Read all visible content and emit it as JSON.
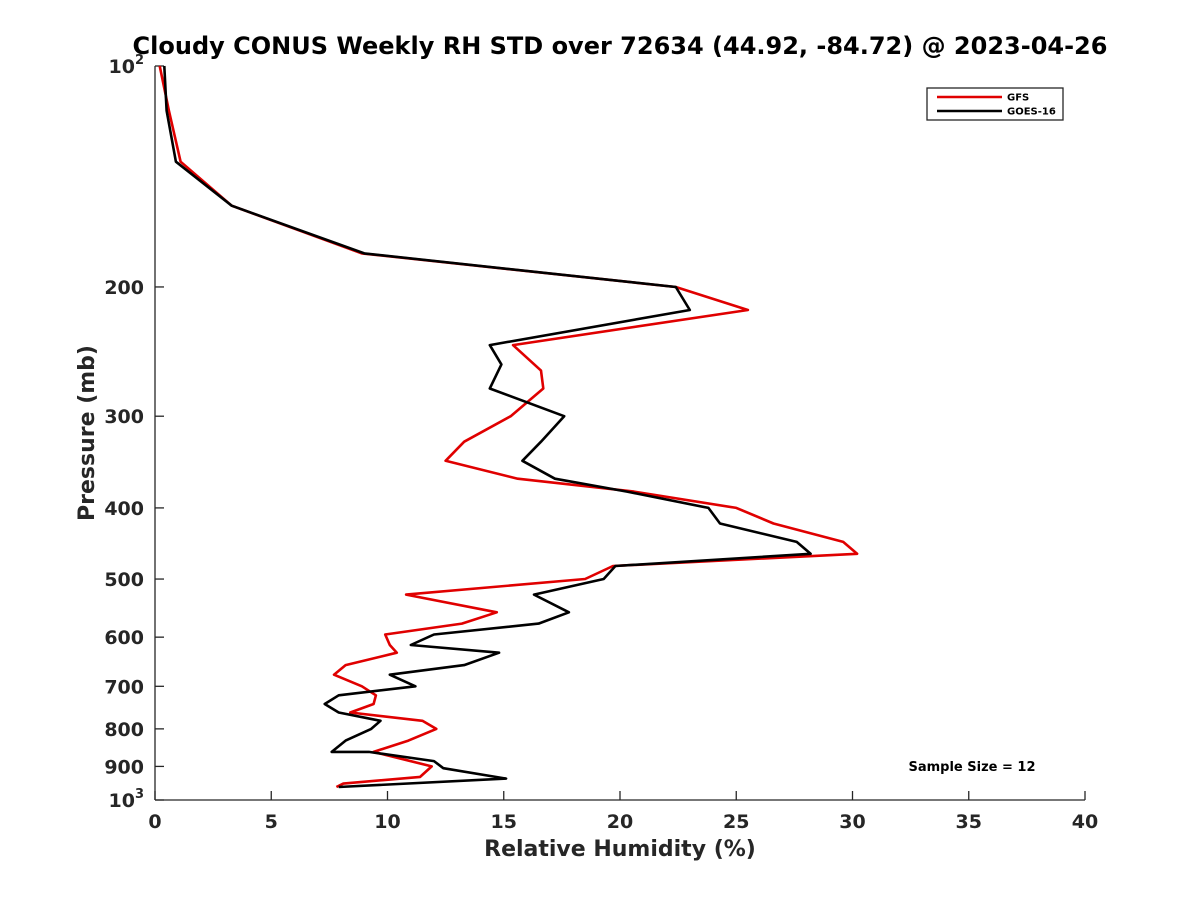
{
  "chart_data": {
    "type": "line",
    "title": "Cloudy CONUS Weekly RH STD over 72634 (44.92, -84.72) @ 2023-04-26",
    "xlabel": "Relative Humidity (%)",
    "ylabel": "Pressure (mb)",
    "xlim": [
      0,
      40
    ],
    "ylim": [
      100,
      1000
    ],
    "yscale": "log",
    "y_reversed": true,
    "x_ticks": [
      "0",
      "5",
      "10",
      "15",
      "20",
      "25",
      "30",
      "35",
      "40"
    ],
    "y_ticks": [
      {
        "value": 100,
        "base": "10",
        "exp": "2"
      },
      {
        "value": 200,
        "base": "200",
        "exp": ""
      },
      {
        "value": 300,
        "base": "300",
        "exp": ""
      },
      {
        "value": 400,
        "base": "400",
        "exp": ""
      },
      {
        "value": 500,
        "base": "500",
        "exp": ""
      },
      {
        "value": 600,
        "base": "600",
        "exp": ""
      },
      {
        "value": 700,
        "base": "700",
        "exp": ""
      },
      {
        "value": 800,
        "base": "800",
        "exp": ""
      },
      {
        "value": 900,
        "base": "900",
        "exp": ""
      },
      {
        "value": 1000,
        "base": "10",
        "exp": "3"
      }
    ],
    "grid": false,
    "legend_position": "top-right",
    "annotation": "Sample Size = 12",
    "series": [
      {
        "name": "GFS",
        "color": "#e00000",
        "points": [
          [
            0.2,
            100
          ],
          [
            0.6,
            115
          ],
          [
            1.1,
            135
          ],
          [
            3.3,
            155
          ],
          [
            8.9,
            180
          ],
          [
            22.4,
            200
          ],
          [
            25.5,
            215
          ],
          [
            15.4,
            240
          ],
          [
            16.6,
            260
          ],
          [
            16.7,
            275
          ],
          [
            15.3,
            300
          ],
          [
            13.3,
            325
          ],
          [
            12.5,
            345
          ],
          [
            15.6,
            365
          ],
          [
            20.6,
            380
          ],
          [
            25.0,
            400
          ],
          [
            26.6,
            420
          ],
          [
            29.6,
            445
          ],
          [
            30.2,
            462
          ],
          [
            19.7,
            480
          ],
          [
            18.5,
            500
          ],
          [
            10.8,
            525
          ],
          [
            14.7,
            555
          ],
          [
            13.2,
            575
          ],
          [
            9.9,
            595
          ],
          [
            10.1,
            615
          ],
          [
            10.4,
            630
          ],
          [
            8.2,
            655
          ],
          [
            7.7,
            675
          ],
          [
            8.9,
            700
          ],
          [
            9.5,
            720
          ],
          [
            9.4,
            740
          ],
          [
            8.4,
            760
          ],
          [
            11.5,
            780
          ],
          [
            12.1,
            800
          ],
          [
            10.9,
            830
          ],
          [
            9.4,
            860
          ],
          [
            11.9,
            900
          ],
          [
            11.4,
            930
          ],
          [
            8.1,
            950
          ],
          [
            7.8,
            960
          ]
        ]
      },
      {
        "name": "GOES-16",
        "color": "#000000",
        "points": [
          [
            0.4,
            100
          ],
          [
            0.5,
            115
          ],
          [
            0.9,
            135
          ],
          [
            3.3,
            155
          ],
          [
            9.0,
            180
          ],
          [
            22.4,
            200
          ],
          [
            23.0,
            215
          ],
          [
            14.4,
            240
          ],
          [
            14.9,
            255
          ],
          [
            14.4,
            275
          ],
          [
            17.6,
            300
          ],
          [
            16.6,
            325
          ],
          [
            15.8,
            345
          ],
          [
            17.2,
            365
          ],
          [
            20.3,
            380
          ],
          [
            23.8,
            400
          ],
          [
            24.3,
            420
          ],
          [
            27.6,
            445
          ],
          [
            28.2,
            462
          ],
          [
            19.8,
            480
          ],
          [
            19.3,
            500
          ],
          [
            16.3,
            525
          ],
          [
            17.8,
            555
          ],
          [
            16.5,
            575
          ],
          [
            12.0,
            595
          ],
          [
            11.0,
            615
          ],
          [
            14.8,
            630
          ],
          [
            13.3,
            655
          ],
          [
            10.1,
            675
          ],
          [
            11.2,
            700
          ],
          [
            7.9,
            720
          ],
          [
            7.3,
            740
          ],
          [
            7.9,
            760
          ],
          [
            9.7,
            780
          ],
          [
            9.3,
            800
          ],
          [
            8.2,
            830
          ],
          [
            7.6,
            860
          ],
          [
            9.2,
            860
          ],
          [
            12.0,
            885
          ],
          [
            12.4,
            905
          ],
          [
            15.1,
            935
          ],
          [
            7.9,
            960
          ]
        ]
      }
    ]
  }
}
